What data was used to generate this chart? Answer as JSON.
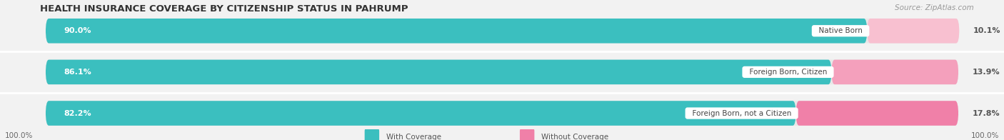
{
  "title": "HEALTH INSURANCE COVERAGE BY CITIZENSHIP STATUS IN PAHRUMP",
  "source": "Source: ZipAtlas.com",
  "categories": [
    "Native Born",
    "Foreign Born, Citizen",
    "Foreign Born, not a Citizen"
  ],
  "with_coverage": [
    90.0,
    86.1,
    82.2
  ],
  "without_coverage": [
    10.1,
    13.9,
    17.8
  ],
  "color_with": "#3BBFBF",
  "color_without": "#F080A8",
  "color_without_light": "#F8C0D0",
  "bg_color": "#f2f2f2",
  "bar_bg": "#e8e8e8",
  "legend_with": "With Coverage",
  "legend_without": "Without Coverage",
  "left_label": "100.0%",
  "right_label": "100.0%",
  "title_fontsize": 9.5,
  "source_fontsize": 7.5,
  "bar_height": 0.6,
  "figsize": [
    14.06,
    1.96
  ],
  "dpi": 100
}
